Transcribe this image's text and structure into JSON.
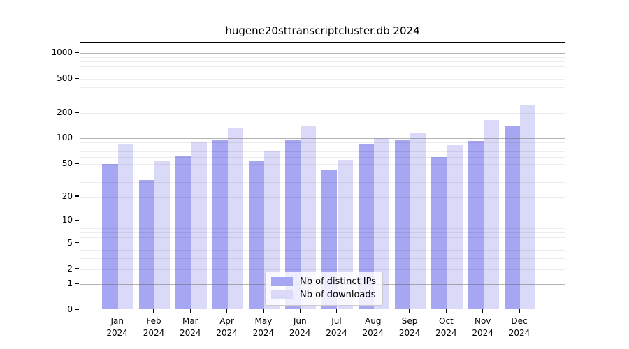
{
  "title": "hugene20sttranscriptcluster.db 2024",
  "chart_data": {
    "type": "bar",
    "title": "hugene20sttranscriptcluster.db 2024",
    "categories": [
      "Jan",
      "Feb",
      "Mar",
      "Apr",
      "May",
      "Jun",
      "Jul",
      "Aug",
      "Sep",
      "Oct",
      "Nov",
      "Dec"
    ],
    "category_year": "2024",
    "series": [
      {
        "name": "Nb of distinct IPs",
        "color": "#a6a6f2",
        "values": [
          50,
          32,
          62,
          96,
          55,
          96,
          43,
          85,
          98,
          60,
          93,
          140
        ]
      },
      {
        "name": "Nb of downloads",
        "color": "#dadaf8",
        "values": [
          85,
          54,
          92,
          135,
          71,
          142,
          56,
          103,
          115,
          83,
          165,
          250
        ]
      }
    ],
    "yscale": "log1p",
    "y_ticks": [
      0,
      1,
      2,
      5,
      10,
      20,
      50,
      100,
      200,
      500,
      1000
    ],
    "ylim": [
      0,
      1360
    ],
    "xlabel": "",
    "ylabel": "",
    "grid": "on",
    "legend_position": "lower center"
  },
  "colors": {
    "ips_bar": "#a6a6f2",
    "downloads_bar": "#dadaf8",
    "axis": "#000000",
    "major_grid": "#8c8c8c",
    "minor_grid": "#ebebeb",
    "legend_border": "#cccccc",
    "background": "#ffffff"
  }
}
